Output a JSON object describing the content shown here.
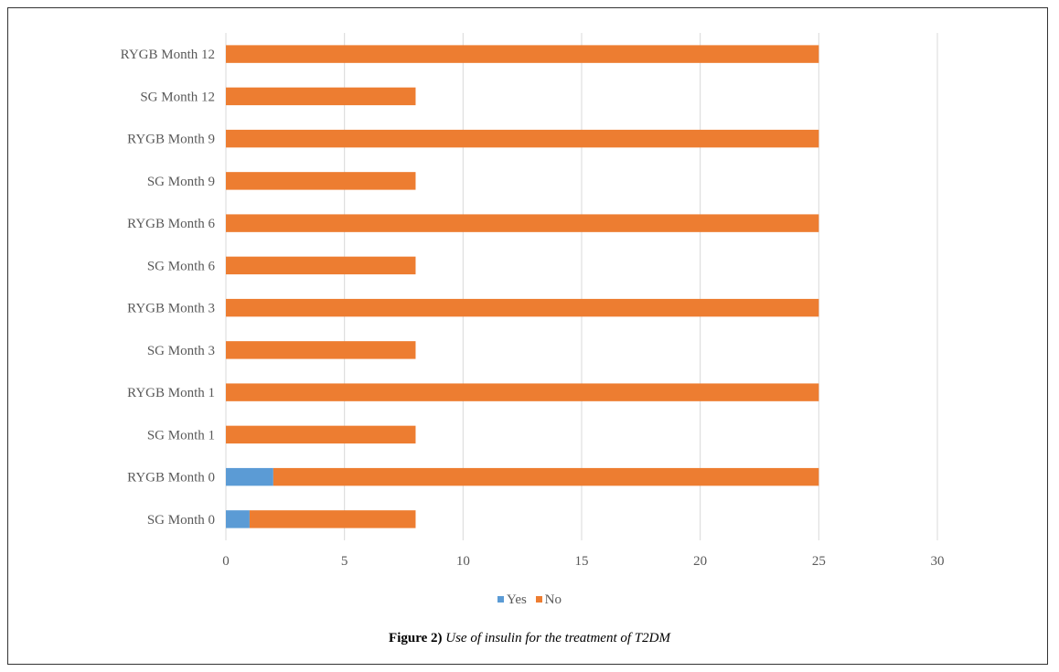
{
  "chart_data": {
    "type": "bar",
    "orientation": "horizontal",
    "stacked": true,
    "categories": [
      "SG Month 0",
      "RYGB Month 0",
      "SG Month 1",
      "RYGB Month 1",
      "SG Month 3",
      "RYGB Month 3",
      "SG Month 6",
      "RYGB Month 6",
      "SG Month 9",
      "RYGB Month 9",
      "SG Month 12",
      "RYGB Month 12"
    ],
    "series": [
      {
        "name": "Yes",
        "color": "#5b9bd5",
        "values": [
          1,
          2,
          0,
          0,
          0,
          0,
          0,
          0,
          0,
          0,
          0,
          0
        ]
      },
      {
        "name": "No",
        "color": "#ed7d31",
        "values": [
          7,
          23,
          8,
          25,
          8,
          25,
          8,
          25,
          8,
          25,
          8,
          25
        ]
      }
    ],
    "xlim": [
      0,
      30
    ],
    "xticks": [
      0,
      5,
      10,
      15,
      20,
      25,
      30
    ],
    "grid": "vertical",
    "legend_position": "bottom"
  },
  "caption": {
    "label": "Figure 2)",
    "text": "Use of insulin for the treatment of T2DM"
  }
}
